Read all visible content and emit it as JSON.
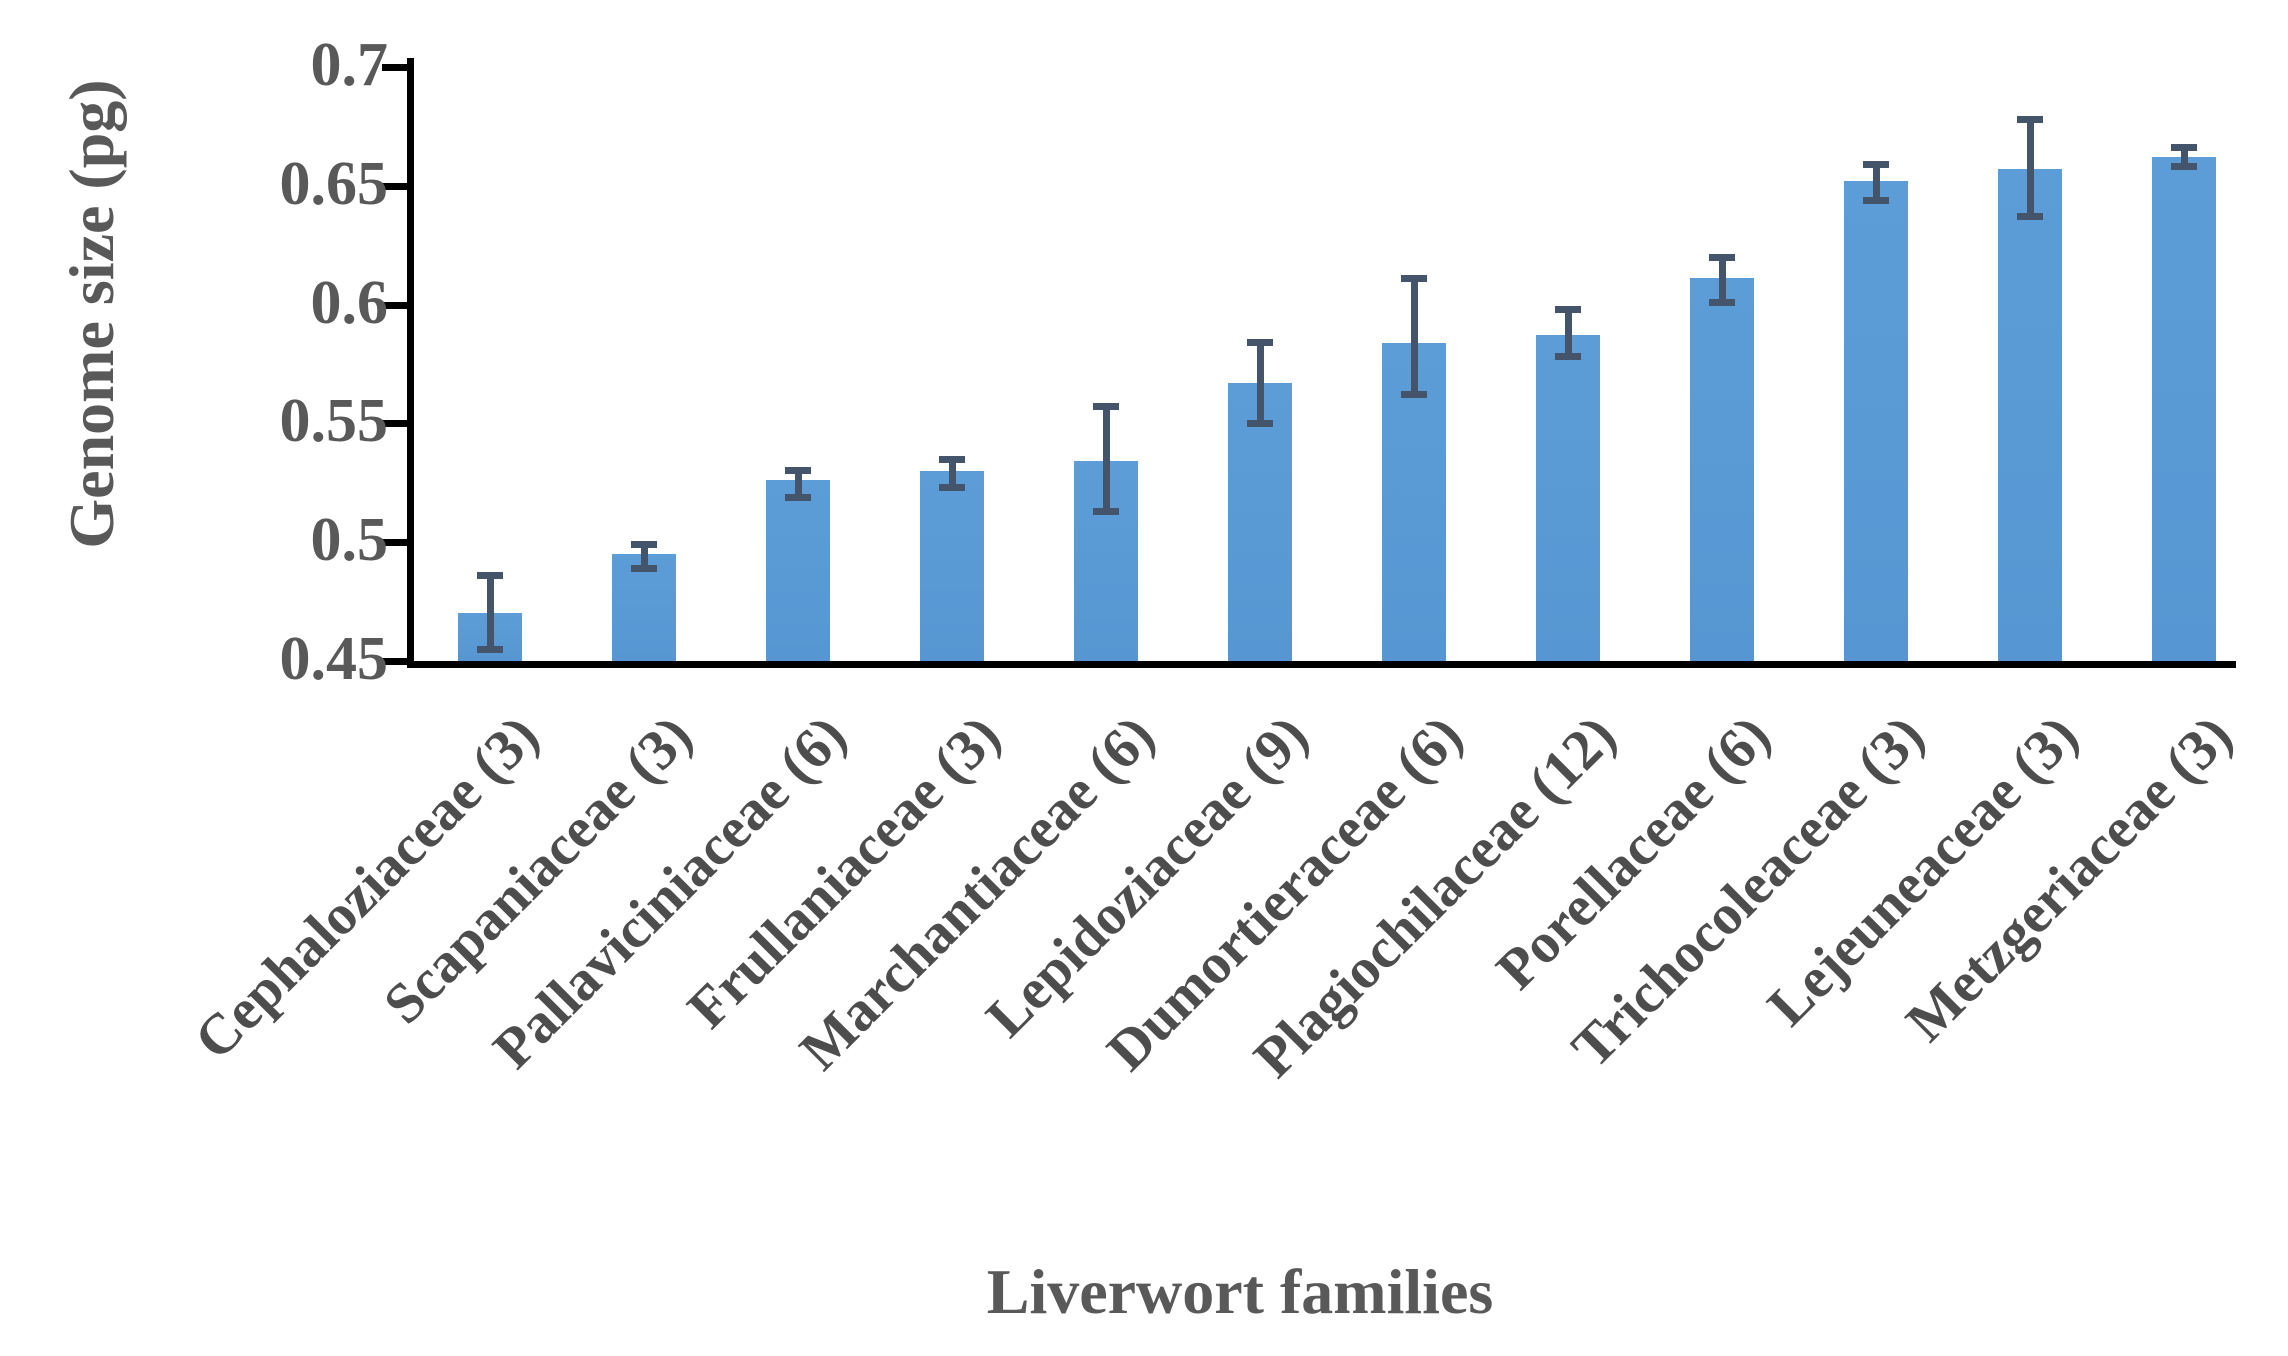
{
  "chart_data": {
    "type": "bar",
    "title": "",
    "xlabel": "Liverwort families",
    "ylabel": "Genome size (pg)",
    "ylim": [
      0.45,
      0.7
    ],
    "yticks": [
      0.45,
      0.5,
      0.55,
      0.6,
      0.65,
      0.7
    ],
    "ytick_labels": [
      "0.45",
      "0.5",
      "0.55",
      "0.6",
      "0.65",
      "0.7"
    ],
    "grid": false,
    "legend": null,
    "categories": [
      "Cephaloziaceae (3)",
      "Scapaniaceae (3)",
      "Pallaviciniaceae (6)",
      "Frullaniaceae (3)",
      "Marchantiaceae (6)",
      "Lepidoziaceae (9)",
      "Dumortieraceae (6)",
      "Plagiochilaceae (12)",
      "Porellaceae (6)",
      "Trichocoleaceae (3)",
      "Lejeuneaceae (3)",
      "Metzgeriaceae (3)"
    ],
    "values": [
      0.47,
      0.495,
      0.526,
      0.53,
      0.534,
      0.567,
      0.584,
      0.587,
      0.611,
      0.652,
      0.657,
      0.662
    ],
    "error_high": [
      0.486,
      0.499,
      0.53,
      0.535,
      0.557,
      0.584,
      0.611,
      0.598,
      0.62,
      0.659,
      0.678,
      0.666
    ],
    "error_low": [
      0.455,
      0.489,
      0.519,
      0.523,
      0.513,
      0.55,
      0.562,
      0.578,
      0.601,
      0.644,
      0.637,
      0.658
    ],
    "bar_color": "#5B9BD5",
    "error_bar_color": "#44546A",
    "axis_color": "#000000",
    "tick_label_color": "#595959",
    "category_label_color": "#4D4D4D"
  }
}
